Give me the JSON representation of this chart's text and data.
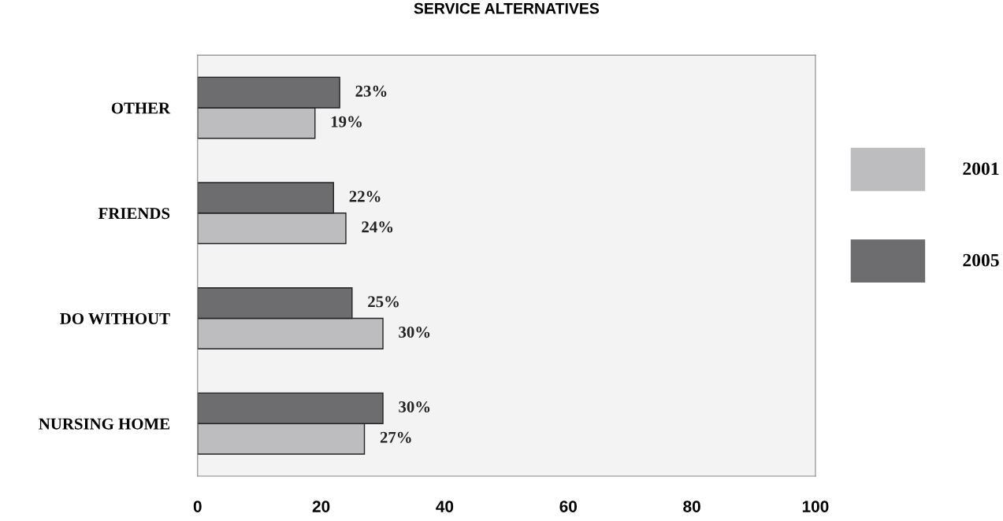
{
  "chart_data": {
    "type": "bar",
    "orientation": "horizontal",
    "title": "SERVICE ALTERNATIVES",
    "categories": [
      "OTHER",
      "FRIENDS",
      "DO WITHOUT",
      "NURSING HOME"
    ],
    "series": [
      {
        "name": "2001",
        "color": "#bdbcbe",
        "values": [
          19,
          24,
          30,
          27
        ],
        "value_labels": [
          "19%",
          "24%",
          "30%",
          "27%"
        ]
      },
      {
        "name": "2005",
        "color": "#6d6c6e",
        "values": [
          23,
          22,
          25,
          30
        ],
        "value_labels": [
          "23%",
          "22%",
          "25%",
          "30%"
        ]
      }
    ],
    "xlim": [
      0,
      100
    ],
    "xticks": [
      0,
      20,
      40,
      60,
      80,
      100
    ],
    "grid": false,
    "legend": "right"
  }
}
